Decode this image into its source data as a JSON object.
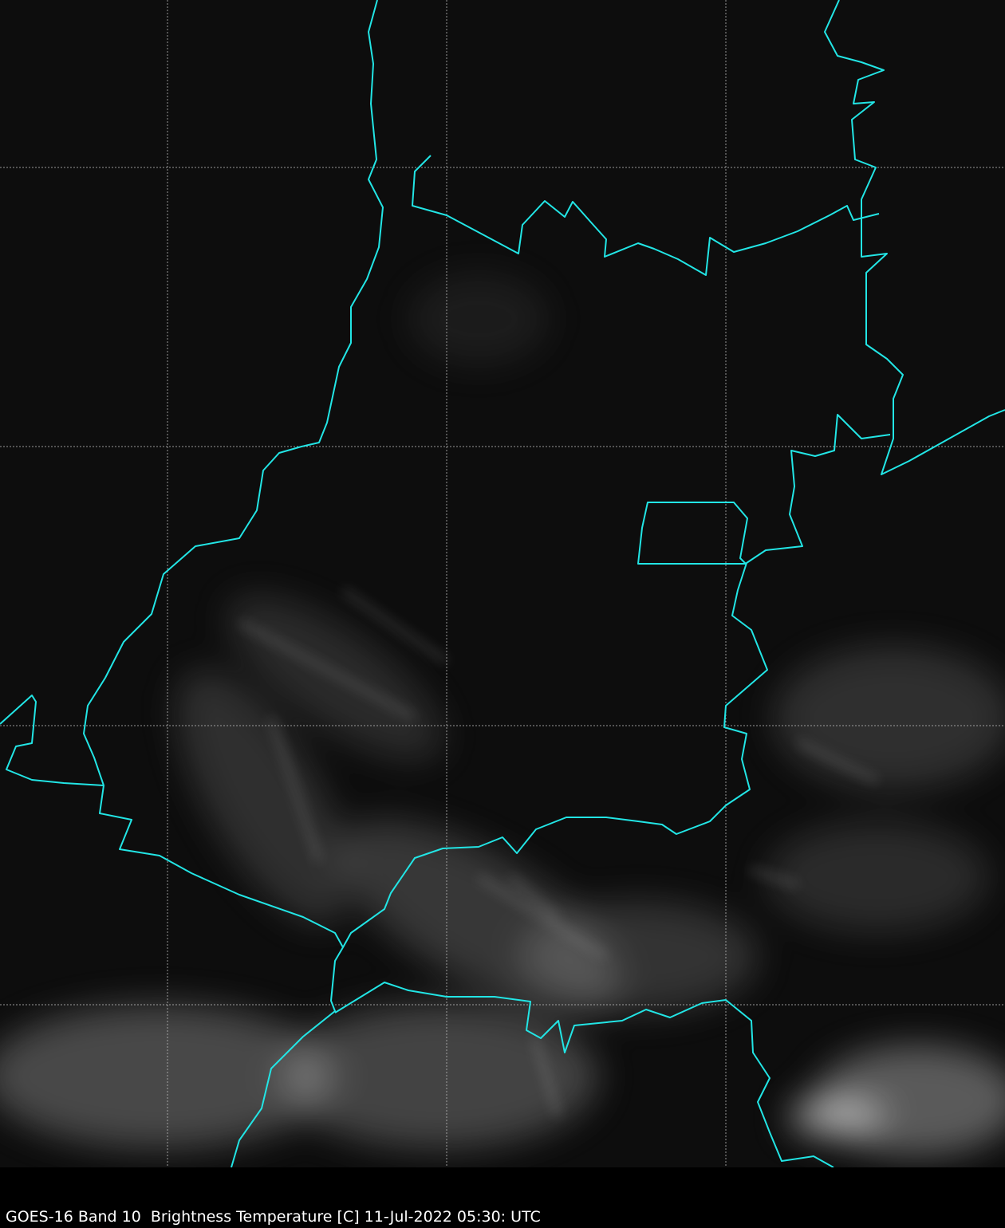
{
  "caption": "GOES-16 Band 10  Brightness Temperature [C] 11-Jul-2022 05:30: UTC",
  "colors": {
    "background": "#0e0e0e",
    "borders": "#22e5e5",
    "grid": "#bbbbbb",
    "clouds": "#cfcfcf"
  },
  "imagery": {
    "satellite": "GOES-16",
    "band": 10,
    "product": "Brightness Temperature",
    "unit": "C",
    "date": "11-Jul-2022",
    "time": "05:30 UTC",
    "colormap": "grayscale"
  }
}
